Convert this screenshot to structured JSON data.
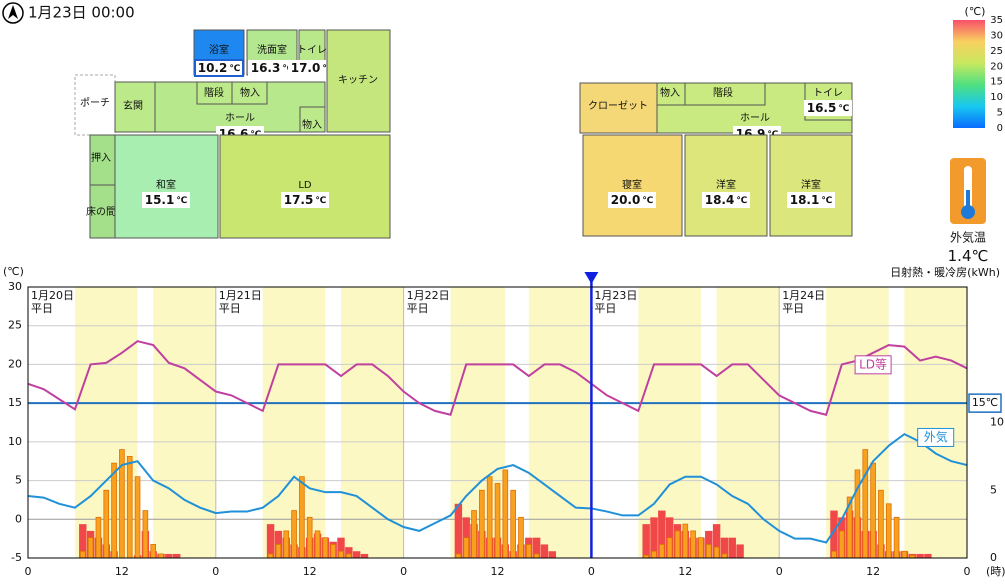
{
  "header": {
    "datetime": "1月23日 00:00"
  },
  "floor_plan": {
    "temp_unit": "℃",
    "rooms": [
      {
        "name": "浴室",
        "temp": "10.2",
        "color": "#1e88f0"
      },
      {
        "name": "洗面室",
        "temp": "16.3",
        "color": "#b4e890"
      },
      {
        "name": "トイレ",
        "temp": "17.0",
        "color": "#b8e88a"
      },
      {
        "name": "キッチン",
        "color": "#c4e67c"
      },
      {
        "name": "ポーチ",
        "color": "#ffffff"
      },
      {
        "name": "玄関",
        "color": "#bce98a"
      },
      {
        "name": "ホール",
        "temp": "16.6",
        "color": "#b8e88c"
      },
      {
        "name": "階段",
        "color": "#bce98a"
      },
      {
        "name": "物入",
        "color": "#bce98a"
      },
      {
        "name": "物入",
        "color": "#bce98a"
      },
      {
        "name": "押入",
        "color": "#a4e08a"
      },
      {
        "name": "床の間",
        "color": "#a4e08a"
      },
      {
        "name": "和室",
        "temp": "15.1",
        "color": "#a8eeb0"
      },
      {
        "name": "LD",
        "temp": "17.5",
        "color": "#c8e670"
      },
      {
        "name": "クローゼット",
        "color": "#f4d878"
      },
      {
        "name": "ホール",
        "temp": "16.9",
        "color": "#c8ea80"
      },
      {
        "name": "物入",
        "color": "#c8ea80"
      },
      {
        "name": "階段",
        "color": "#c8ea80"
      },
      {
        "name": "トイレ",
        "temp": "16.5",
        "color": "#c8ea80"
      },
      {
        "name": "寝室",
        "temp": "20.0",
        "color": "#f5d872"
      },
      {
        "name": "洋室",
        "temp": "18.4",
        "color": "#dce67a"
      },
      {
        "name": "洋室",
        "temp": "18.1",
        "color": "#dbe67c"
      }
    ]
  },
  "color_scale": {
    "unit": "(℃)",
    "ticks": [
      35,
      30,
      25,
      20,
      15,
      10,
      5,
      0
    ],
    "colors": [
      "#f8506a",
      "#f8d060",
      "#c8e860",
      "#50e080",
      "#18c8f0",
      "#0a6cff"
    ]
  },
  "outdoor": {
    "label": "外気温",
    "temp": 1.4,
    "unit": "℃"
  },
  "chart_data": {
    "type": "line",
    "y_unit": "(℃)",
    "y2_label": "日射熱・暖冷房(kWh)",
    "x_unit": "(時)",
    "xlim": [
      0,
      120
    ],
    "xticks": [
      0,
      12,
      {
        "value": 24,
        "label": "0"
      },
      {
        "value": 36,
        "label": "12"
      },
      {
        "value": 48,
        "label": "0"
      },
      {
        "value": 60,
        "label": "12"
      },
      {
        "value": 72,
        "label": "0"
      },
      {
        "value": 84,
        "label": "12"
      },
      {
        "value": 96,
        "label": "0"
      },
      {
        "value": 108,
        "label": "12"
      },
      {
        "value": 120,
        "label": "0"
      }
    ],
    "ylim": [
      -5,
      30
    ],
    "yticks": [
      -5,
      0,
      5,
      10,
      15,
      20,
      25,
      30
    ],
    "y2lim": [
      0,
      20
    ],
    "y2ticks": [
      0,
      5,
      10
    ],
    "grid": true,
    "highlight_ranges": [
      [
        6,
        14
      ],
      [
        16,
        24
      ],
      [
        30,
        38
      ],
      [
        40,
        48
      ],
      [
        54,
        61
      ],
      [
        64,
        72
      ],
      [
        78,
        86
      ],
      [
        88,
        96
      ],
      [
        102,
        110
      ],
      [
        112,
        120
      ]
    ],
    "day_labels": [
      {
        "x": 0,
        "date": "1月20日",
        "kind": "平日"
      },
      {
        "x": 24,
        "date": "1月21日",
        "kind": "平日"
      },
      {
        "x": 48,
        "date": "1月22日",
        "kind": "平日"
      },
      {
        "x": 72,
        "date": "1月23日",
        "kind": "平日"
      },
      {
        "x": 96,
        "date": "1月24日",
        "kind": "平日"
      }
    ],
    "now_x": 72,
    "reference_line": {
      "value": 15,
      "label": "15℃",
      "color": "#2070c0"
    },
    "x": [
      0,
      2,
      4,
      6,
      8,
      10,
      12,
      14,
      16,
      18,
      20,
      22,
      24,
      26,
      28,
      30,
      32,
      34,
      36,
      38,
      40,
      42,
      44,
      46,
      48,
      50,
      52,
      54,
      56,
      58,
      60,
      62,
      64,
      66,
      68,
      70,
      72,
      74,
      76,
      78,
      80,
      82,
      84,
      86,
      88,
      90,
      92,
      94,
      96,
      98,
      100,
      102,
      104,
      106,
      108,
      110,
      112,
      114,
      116,
      118,
      120
    ],
    "series": [
      {
        "name": "LD等",
        "color": "#c040a0",
        "values": [
          17.5,
          16.8,
          15.5,
          14.2,
          20,
          20.2,
          21.5,
          23,
          22.5,
          20.2,
          19.5,
          18,
          16.5,
          16,
          15,
          14,
          20,
          20,
          20,
          20,
          18.5,
          20,
          20,
          18.5,
          16.5,
          15,
          14,
          13.5,
          20,
          20,
          20,
          20,
          18.5,
          20,
          20,
          19,
          17.5,
          16,
          15,
          14,
          20,
          20,
          20,
          20,
          18.5,
          20,
          20,
          18,
          16,
          15,
          14,
          13.5,
          20,
          20.5,
          21.5,
          22.5,
          22.3,
          20.5,
          21,
          20.5,
          19.5
        ]
      },
      {
        "name": "外気",
        "color": "#2090d8",
        "values": [
          3,
          2.8,
          2,
          1.5,
          3,
          5,
          7,
          7.5,
          5,
          4,
          2.5,
          1.5,
          0.8,
          1,
          1,
          1.5,
          3,
          5.5,
          4,
          3.5,
          3.5,
          3,
          1.5,
          0,
          -1,
          -1.5,
          -0.5,
          0.5,
          3,
          5,
          6.5,
          7,
          6,
          4.5,
          3,
          1.5,
          1.4,
          1,
          0.5,
          0.5,
          2,
          4.5,
          5.5,
          5.5,
          4.5,
          3,
          2,
          0,
          -1.5,
          -2.5,
          -2.5,
          -3,
          0,
          4,
          7.5,
          9.5,
          11,
          10,
          8.5,
          7.5,
          7
        ]
      }
    ],
    "bars": {
      "x": [
        7,
        8,
        9,
        10,
        11,
        12,
        13,
        14,
        15,
        16,
        17,
        18,
        19,
        31,
        32,
        33,
        34,
        35,
        36,
        37,
        38,
        39,
        40,
        41,
        42,
        43,
        55,
        56,
        57,
        58,
        59,
        60,
        61,
        62,
        63,
        64,
        65,
        66,
        67,
        79,
        80,
        81,
        82,
        83,
        84,
        85,
        86,
        87,
        88,
        89,
        90,
        91,
        103,
        104,
        105,
        106,
        107,
        108,
        109,
        110,
        111,
        112,
        113,
        114,
        115
      ],
      "series": [
        {
          "color": "#f04848",
          "axis": "y2",
          "values": [
            2.5,
            2,
            1.5,
            1,
            0.5,
            0,
            0,
            0.2,
            2,
            0.5,
            0.3,
            0.3,
            0.3,
            2.5,
            2,
            1.5,
            1,
            0.8,
            1.5,
            1.8,
            1.5,
            1.2,
            1.5,
            0.8,
            0.5,
            0.3,
            4,
            3,
            2.5,
            2,
            1.5,
            1.5,
            1,
            0.5,
            1,
            1.5,
            1.5,
            1,
            0.5,
            2.5,
            3,
            3.5,
            3,
            2.5,
            2,
            1.5,
            1.5,
            2,
            2.5,
            1.5,
            1.5,
            1,
            3.5,
            3,
            3.5,
            3,
            2,
            2,
            1,
            0.5,
            0.5,
            0.5,
            0.3,
            0.3,
            0.3
          ]
        },
        {
          "color": "#f8a020",
          "axis": "y2",
          "values": [
            0.5,
            1.5,
            3,
            5,
            7,
            8,
            7.5,
            6,
            3.5,
            1,
            0.3,
            0,
            0,
            0.3,
            1,
            2,
            3.5,
            6,
            3,
            2,
            1.5,
            1,
            0.5,
            0.3,
            0,
            0,
            0.3,
            1.5,
            3.5,
            5,
            6,
            5.5,
            6.5,
            5,
            3,
            1,
            0.3,
            0,
            0,
            0.2,
            0.5,
            1,
            1.5,
            2,
            2.5,
            2,
            1.5,
            1,
            0.8,
            0.3,
            0,
            0,
            0.5,
            2,
            4.5,
            6.5,
            8,
            7,
            5,
            4,
            3,
            0.5,
            0.2,
            0,
            0
          ]
        }
      ]
    }
  }
}
